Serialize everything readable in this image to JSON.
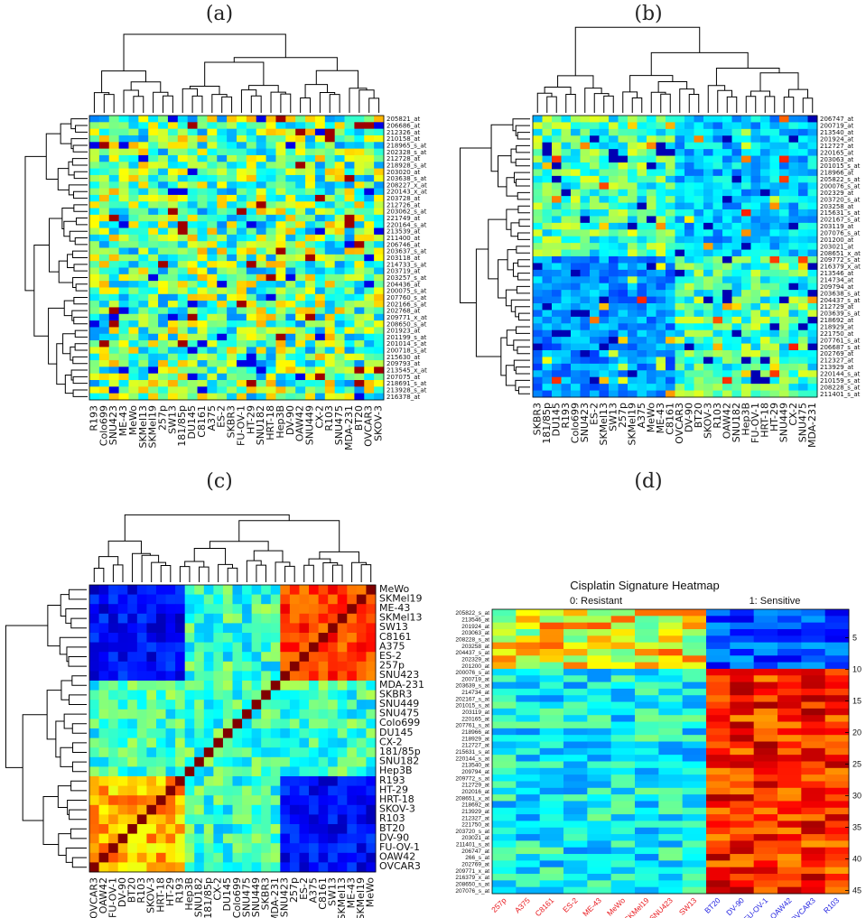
{
  "chart_data": [
    {
      "type": "heatmap",
      "panel": "(a)",
      "title": "",
      "columns": [
        "R193",
        "Colo699",
        "SNU423",
        "ME-43",
        "MeWo",
        "SKMel13",
        "SKMel19",
        "257p",
        "SW13",
        "181/85p",
        "DU145",
        "C8161",
        "A375",
        "ES-2",
        "SKBR3",
        "FU-OV-1",
        "HT-29",
        "SNU182",
        "HRT-18",
        "Hep3B",
        "DV-90",
        "OAW42",
        "SNU449",
        "CX-2",
        "R103",
        "SNU475",
        "MDA-231",
        "BT20",
        "OVCAR3",
        "SKOV-3"
      ],
      "rows": [
        "205821_at",
        "206686_at",
        "212326_at",
        "210158_at",
        "218965_s_at",
        "202328_s_at",
        "212728_at",
        "218928_s_at",
        "203020_at",
        "203638_s_at",
        "208227_x_at",
        "220143_x_at",
        "203728_at",
        "212726_at",
        "203062_s_at",
        "221749_at",
        "220164_s_at",
        "213539_at",
        "211400_at",
        "206746_at",
        "203637_s_at",
        "203118_at",
        "214733_s_at",
        "203719_at",
        "203257_s_at",
        "204436_at",
        "200075_s_at",
        "207760_s_at",
        "202166_s_at",
        "202768_at",
        "209771_x_at",
        "208650_s_at",
        "201923_at",
        "201199_s_at",
        "201014_s_at",
        "200718_s_at",
        "215630_at",
        "209793_at",
        "213545_x_at",
        "207075_at",
        "218691_s_at",
        "213928_s_at",
        "216378_at"
      ],
      "colormap": "jet"
    },
    {
      "type": "heatmap",
      "panel": "(b)",
      "title": "",
      "columns": [
        "SKBR3",
        "181/85p",
        "DU145",
        "R193",
        "Colo699",
        "SNU423",
        "ES-2",
        "SKMel13",
        "SW13",
        "257p",
        "SKMel19",
        "A375",
        "MeWo",
        "ME-43",
        "C8161",
        "OVCAR3",
        "DV-90",
        "BT20",
        "SKOV-3",
        "R103",
        "OAW42",
        "SNU182",
        "Hep3B",
        "FU-OV-1",
        "HRT-18",
        "HT-29",
        "SNU449",
        "CX-2",
        "SNU475",
        "MDA-231"
      ],
      "rows": [
        "206747_at",
        "200719_at",
        "213540_at",
        "201924_at",
        "212727_at",
        "220165_at",
        "203063_at",
        "201015_s_at",
        "218966_at",
        "205822_s_at",
        "200076_s_at",
        "202329_at",
        "203720_s_at",
        "203258_at",
        "215631_s_at",
        "202167_s_at",
        "203119_at",
        "207076_s_at",
        "201200_at",
        "203021_at",
        "208651_x_at",
        "209772_s_at",
        "216379_x_at",
        "213546_at",
        "214734_at",
        "209794_at",
        "203638_s_at",
        "204437_s_at",
        "212729_at",
        "203639_s_at",
        "218692_at",
        "218929_at",
        "221750_at",
        "207761_s_at",
        "206687_s_at",
        "202769_at",
        "212327_at",
        "213929_at",
        "220144_s_at",
        "210159_s_at",
        "208228_s_at",
        "211401_s_at"
      ],
      "colormap": "jet"
    },
    {
      "type": "heatmap",
      "panel": "(c)",
      "title": "",
      "columns": [
        "OVCAR3",
        "OAW42",
        "FU-OV-1",
        "DV-90",
        "BT20",
        "R103",
        "SKOV-3",
        "HRT-18",
        "HT-29",
        "R193",
        "Hep3B",
        "SNU182",
        "181/85p",
        "CX-2",
        "DU145",
        "Colo699",
        "SNU475",
        "SNU449",
        "SKBR3",
        "MDA-231",
        "SNU423",
        "257p",
        "ES-2",
        "A375",
        "C8161",
        "SW13",
        "SKMel13",
        "ME-43",
        "SKMel19",
        "MeWo"
      ],
      "rows": [
        "MeWo",
        "SKMel19",
        "ME-43",
        "SKMel13",
        "SW13",
        "C8161",
        "A375",
        "ES-2",
        "257p",
        "SNU423",
        "MDA-231",
        "SKBR3",
        "SNU449",
        "SNU475",
        "Colo699",
        "DU145",
        "CX-2",
        "181/85p",
        "SNU182",
        "Hep3B",
        "R193",
        "HT-29",
        "HRT-18",
        "SKOV-3",
        "R103",
        "BT20",
        "DV-90",
        "FU-OV-1",
        "OAW42",
        "OVCAR3"
      ],
      "colormap": "jet"
    },
    {
      "type": "heatmap",
      "panel": "(d)",
      "title": "Cisplatin Signature Heatmap",
      "group_labels": [
        "0: Resistant",
        "1: Sensitive"
      ],
      "columns": [
        "257p",
        "A375",
        "C8161",
        "ES-2",
        "ME-43",
        "MeWo",
        "SKMel19",
        "SNU423",
        "SW13",
        "BT20",
        "DV-90",
        "FU-OV-1",
        "OAW42",
        "OVCAR3",
        "R103"
      ],
      "column_colors": [
        "#e8191e",
        "#e8191e",
        "#e8191e",
        "#e8191e",
        "#e8191e",
        "#e8191e",
        "#e8191e",
        "#e8191e",
        "#e8191e",
        "#1f1fe0",
        "#1f1fe0",
        "#1f1fe0",
        "#1f1fe0",
        "#1f1fe0",
        "#1f1fe0"
      ],
      "rows": [
        "205822_s_at",
        "213546_at",
        "201924_at",
        "203063_at",
        "208228_s_at",
        "203258_at",
        "204437_s_at",
        "202329_at",
        "201200_at",
        "200076_s_at",
        "200719_at",
        "203639_s_at",
        "214734_at",
        "202167_s_at",
        "201015_s_at",
        "203119_at",
        "220165_at",
        "207761_s_at",
        "218966_at",
        "218929_at",
        "212727_at",
        "215631_s_at",
        "220144_s_at",
        "213540_at",
        "209794_at",
        "209772_s_at",
        "212729_at",
        "202016_at",
        "208651_x_at",
        "218692_at",
        "213929_at",
        "212327_at",
        "221750_at",
        "203720_s_at",
        "203021_at",
        "211401_s_at",
        "206747_at",
        "266_s_at",
        "202769_at",
        "209771_x_at",
        "216379_x_at",
        "208650_s_at",
        "207076_s_at"
      ],
      "y_ticks": [
        5,
        10,
        15,
        20,
        25,
        30,
        35,
        40,
        45
      ],
      "colormap": "jet"
    }
  ]
}
